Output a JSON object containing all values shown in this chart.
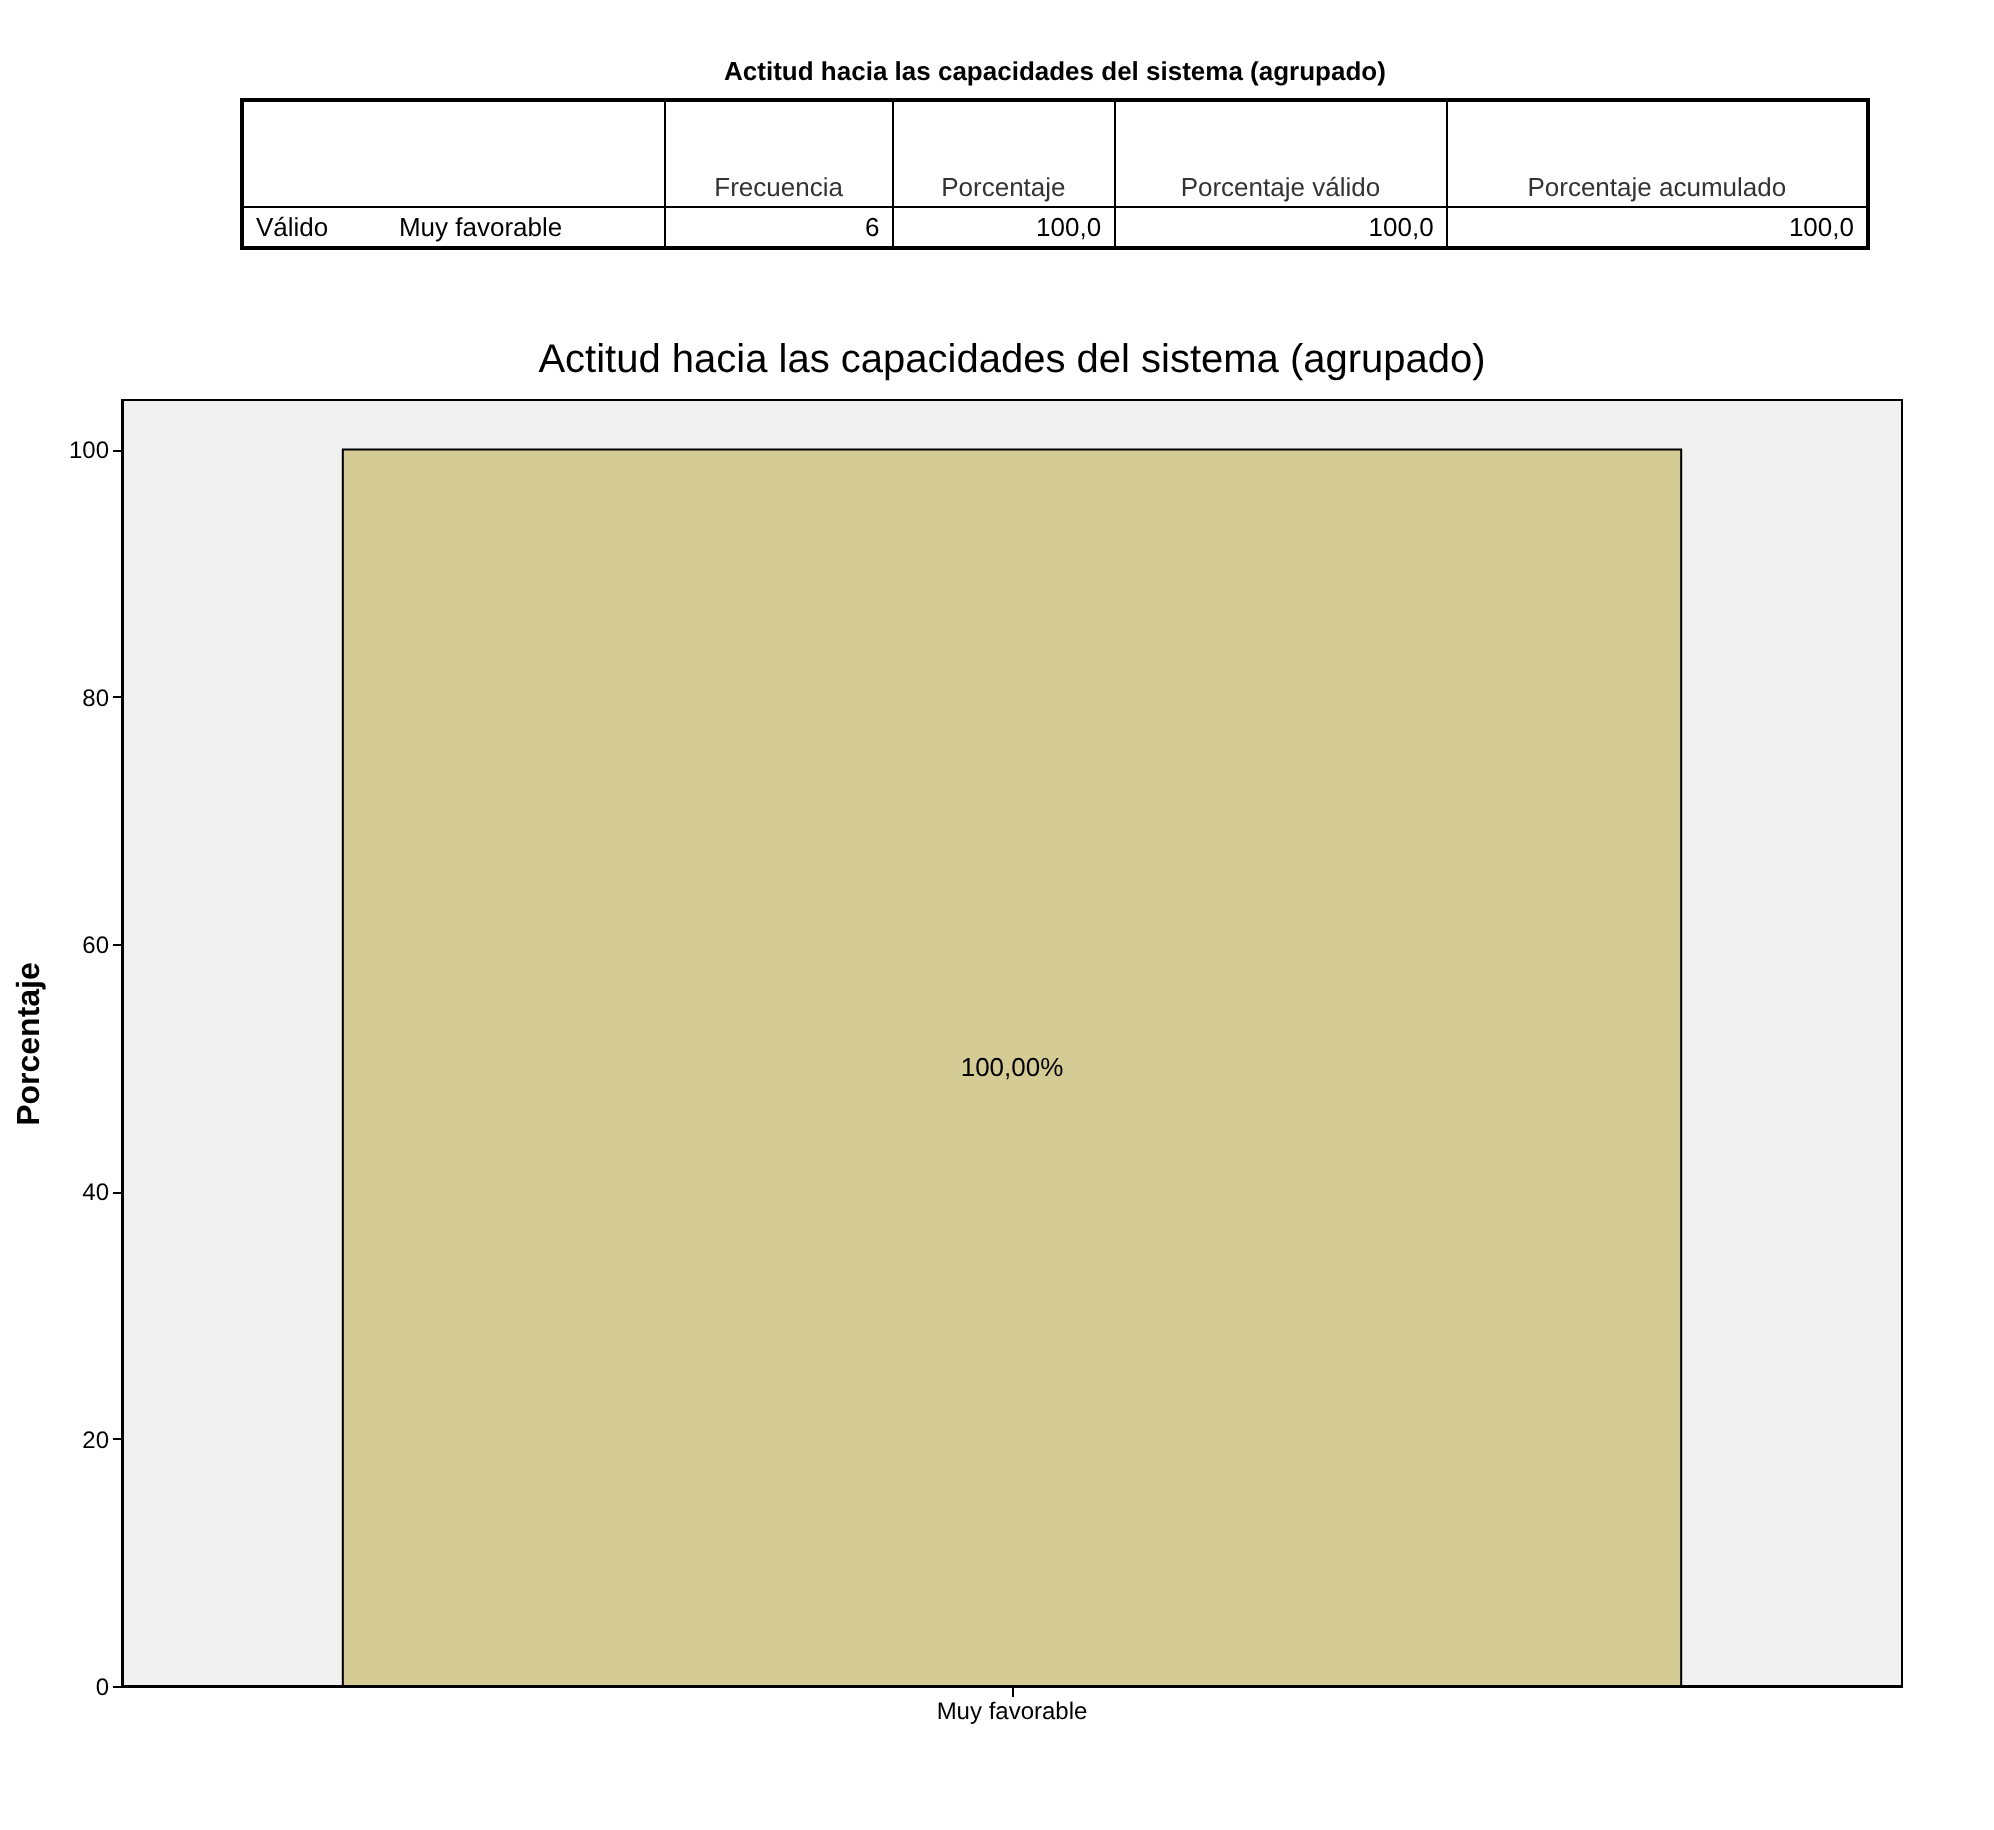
{
  "chart_data": [
    {
      "type": "other",
      "title": "Actitud hacia las capacidades del sistema (agrupado)",
      "categories": [
        "Frecuencia",
        "Porcentaje",
        "Porcentaje válido",
        "Porcentaje acumulado"
      ],
      "annotations": [
        "Válido",
        "Muy favorable",
        "6",
        "100,0",
        "100,0",
        "100,0"
      ]
    },
    {
      "type": "bar",
      "title": "Actitud hacia las capacidades del sistema (agrupado)",
      "ylabel": "Porcentaje",
      "categories": [
        "Muy favorable"
      ],
      "values": [
        100
      ],
      "color": "#d4cb95",
      "ylim": [
        0,
        104
      ],
      "yticks": [
        0,
        20,
        40,
        60,
        80,
        100
      ],
      "value_labels": [
        "100,00%"
      ],
      "grid": false
    }
  ]
}
